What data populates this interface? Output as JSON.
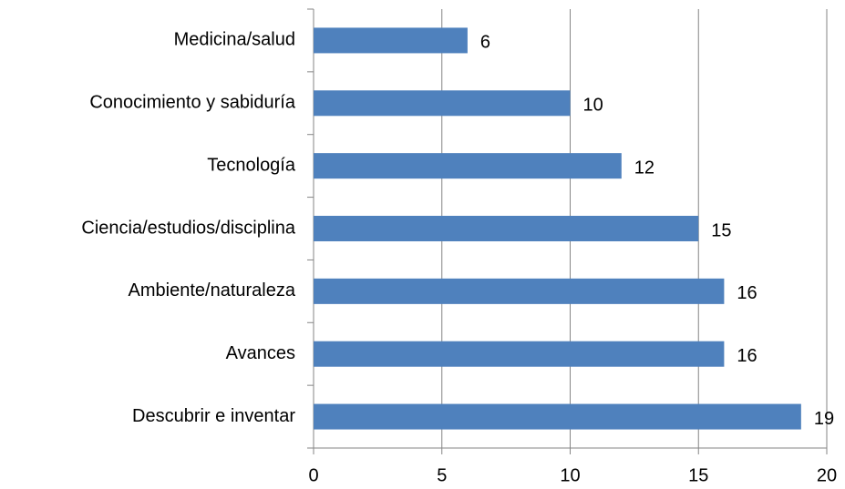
{
  "chart_data": {
    "type": "hbar",
    "categories": [
      "Medicina/salud",
      "Conocimiento y sabiduría",
      "Tecnología",
      "Ciencia/estudios/disciplina",
      "Ambiente/naturaleza",
      "Avances",
      "Descubrir e inventar"
    ],
    "values": [
      6,
      10,
      12,
      15,
      16,
      16,
      19
    ],
    "color": "#4f81bd",
    "xlim": [
      0,
      20
    ],
    "xticks": [
      0,
      5,
      10,
      15,
      20
    ],
    "grid": true
  }
}
